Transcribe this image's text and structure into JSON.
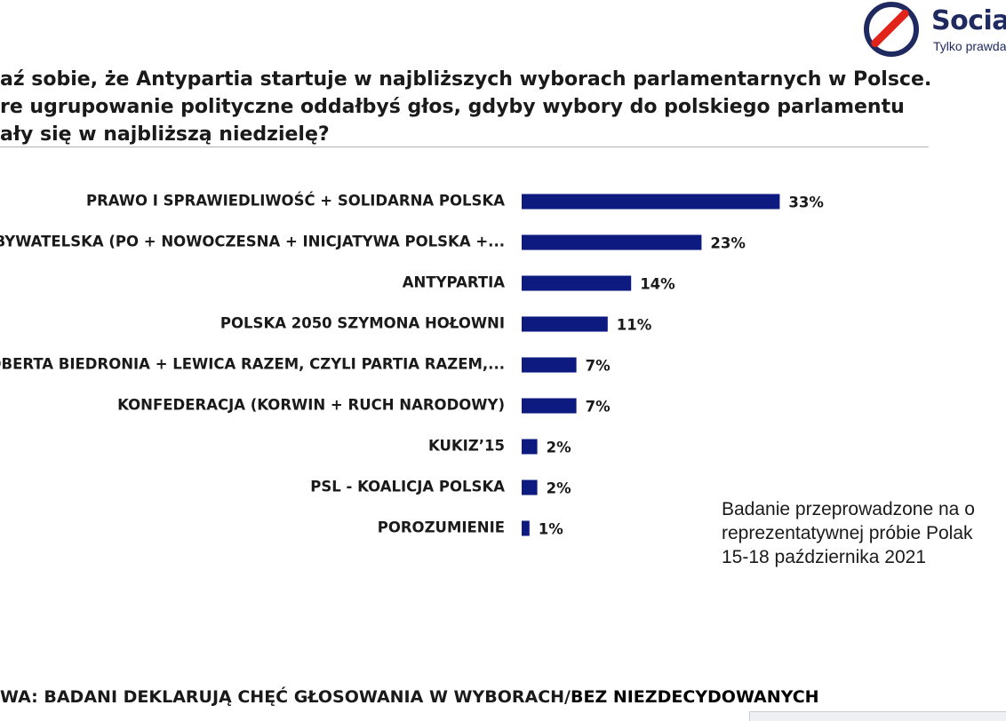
{
  "logo": {
    "word": "Socia",
    "tagline": "Tylko prawda"
  },
  "title": {
    "line1": "aź sobie, że Antypartia startuje w najbliższych wyborach parlamentarnych w Polsce.",
    "line2": "re ugrupowanie polityczne oddałbyś głos, gdyby wybory do polskiego parlamentu",
    "line3": "ały się w najbliższą niedzielę?"
  },
  "colors": {
    "bar": "#0d1a80",
    "brand": "#1f2a60",
    "logo_slash": "#e2231a"
  },
  "chart_data": {
    "type": "bar",
    "orientation": "horizontal",
    "categories": [
      "PRAWO I SPRAWIEDLIWOŚĆ + SOLIDARNA POLSKA",
      "A OBYWATELSKA (PO + NOWOCZESNA + INICJATYWA POLSKA +...",
      "ANTYPARTIA",
      "POLSKA 2050 SZYMONA HOŁOWNI",
      "A ROBERTA BIEDRONIA + LEWICA RAZEM, CZYLI PARTIA RAZEM,...",
      "KONFEDERACJA (KORWIN + RUCH NARODOWY)",
      "KUKIZ’15",
      "PSL - KOALICJA POLSKA",
      "POROZUMIENIE"
    ],
    "values": [
      33,
      23,
      14,
      11,
      7,
      7,
      2,
      2,
      1
    ],
    "value_labels": [
      "33%",
      "23%",
      "14%",
      "11%",
      "7%",
      "7%",
      "2%",
      "2%",
      "1%"
    ],
    "unit": "%",
    "grid": false,
    "legend": false
  },
  "note": {
    "line1": "Badanie przeprowadzone na o",
    "line2": "reprezentatywnej próbie Polak",
    "line3": "15-18 października 2021"
  },
  "footer": {
    "text": "WA: BADANI DEKLARUJĄ CHĘĆ GŁOSOWANIA W WYBORACH/",
    "bold_part": "BEZ NIEZDECYDOWANYCH"
  }
}
